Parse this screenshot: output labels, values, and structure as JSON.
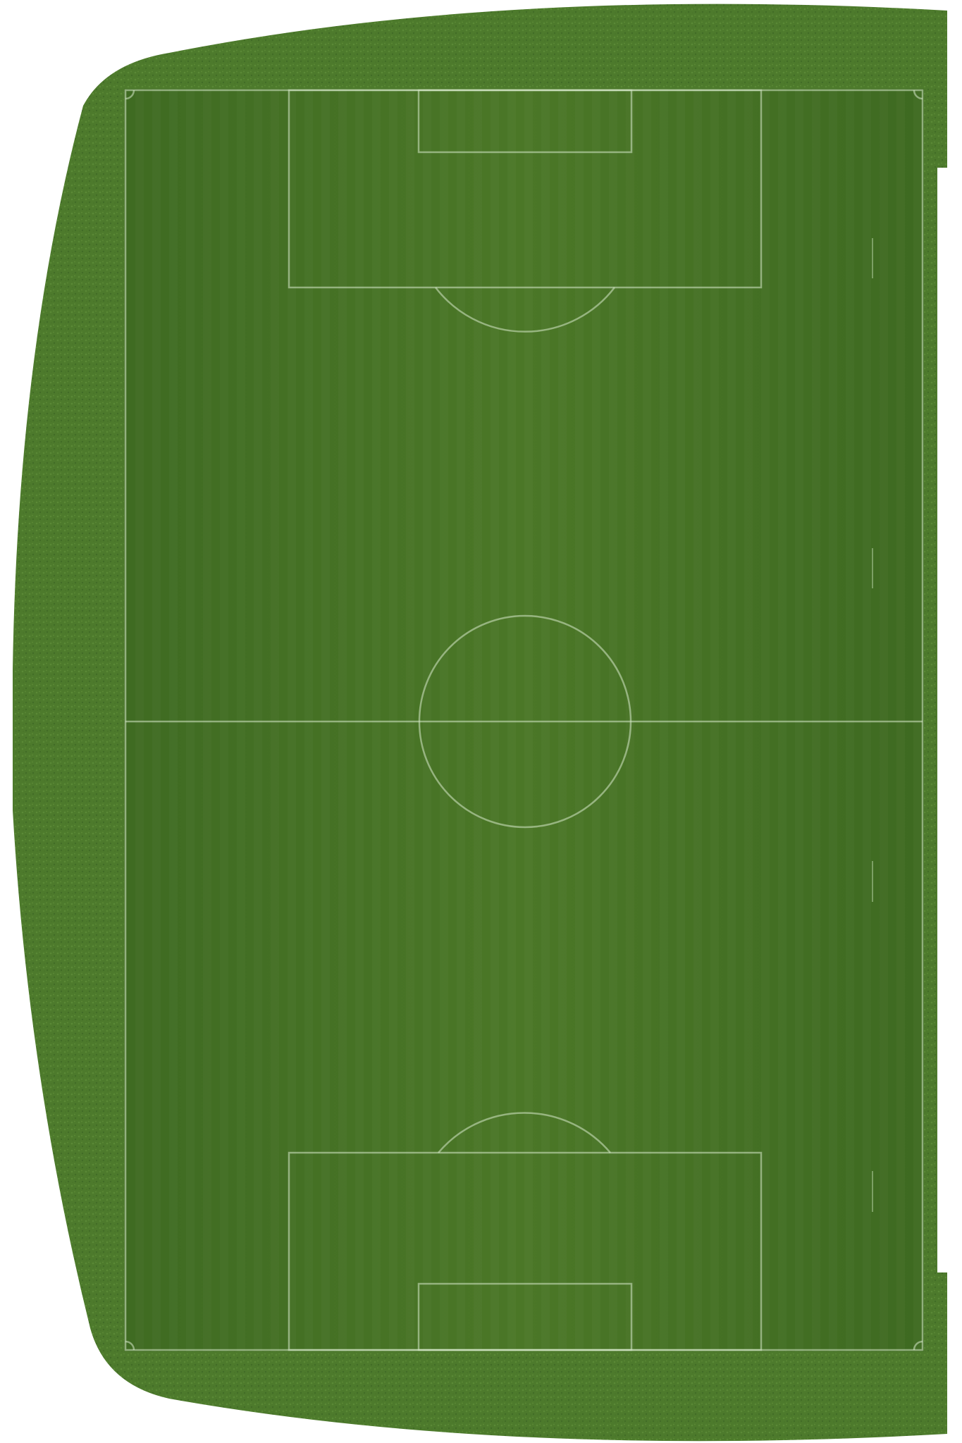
{
  "scene": {
    "surround_color": "#4d7a2c",
    "surround_texture_color": "#5d8b36",
    "pitch_color": "#4a7526",
    "pitch_stripe_dark": "#3f6a22",
    "pitch_stripe_light": "#54802f",
    "line_color": "#d6e8c8",
    "background_color": "#ffffff"
  }
}
